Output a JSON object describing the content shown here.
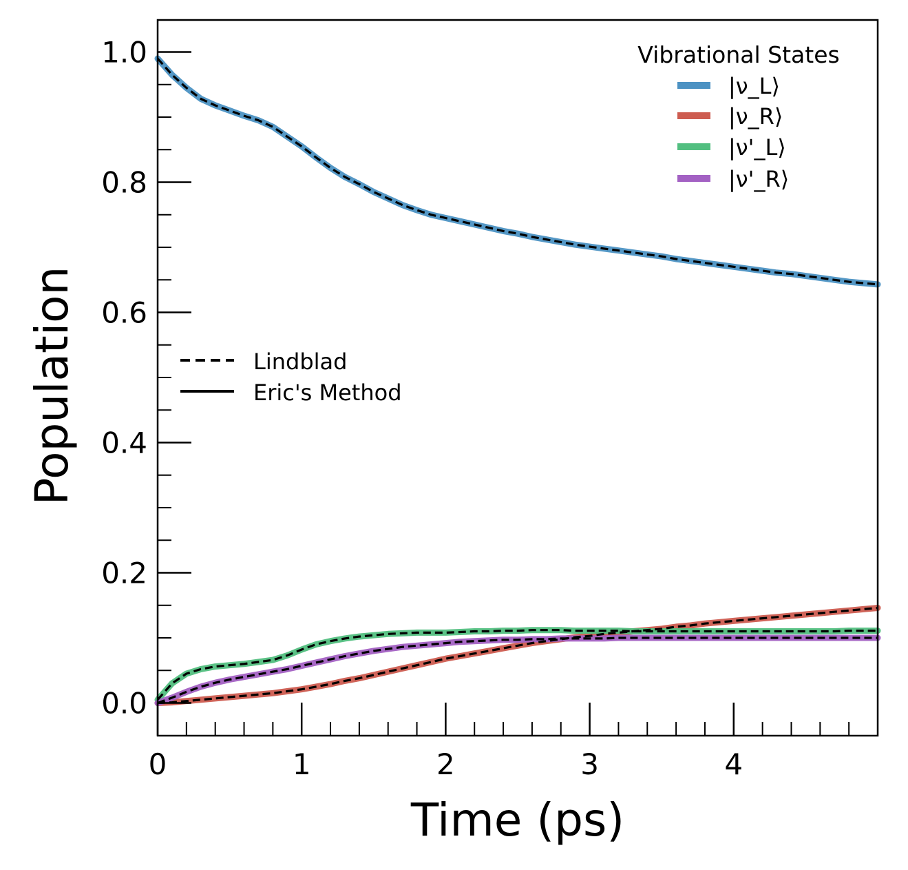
{
  "chart_data": {
    "type": "line",
    "title": "",
    "xlabel": "Time (ps)",
    "ylabel": "Population",
    "xlim": [
      0,
      5
    ],
    "ylim": [
      -0.05,
      1.05
    ],
    "x_ticks": [
      "0",
      "1",
      "2",
      "3",
      "4"
    ],
    "y_ticks": [
      "0.0",
      "0.2",
      "0.4",
      "0.6",
      "0.8",
      "1.0"
    ],
    "grid": false,
    "legend_states": {
      "title": "Vibrational States",
      "placement": "top-right",
      "entries": [
        "|ν_L⟩",
        "|ν_R⟩",
        "|ν'_L⟩",
        "|ν'_R⟩"
      ]
    },
    "legend_methods": {
      "placement": "center-left",
      "entries": [
        "Lindblad",
        "Eric's Method"
      ]
    },
    "x": [
      0,
      0.1,
      0.2,
      0.3,
      0.4,
      0.5,
      0.6,
      0.7,
      0.8,
      0.9,
      1.0,
      1.1,
      1.2,
      1.3,
      1.4,
      1.5,
      1.6,
      1.7,
      1.8,
      1.9,
      2.0,
      2.1,
      2.2,
      2.3,
      2.4,
      2.5,
      2.6,
      2.7,
      2.8,
      2.9,
      3.0,
      3.1,
      3.2,
      3.3,
      3.4,
      3.5,
      3.6,
      3.7,
      3.8,
      3.9,
      4.0,
      4.1,
      4.2,
      4.3,
      4.4,
      4.5,
      4.6,
      4.7,
      4.8,
      4.9,
      5.0
    ],
    "series": [
      {
        "name": "|ν_L⟩",
        "color": "#4c92c3",
        "values": [
          0.99,
          0.965,
          0.945,
          0.928,
          0.918,
          0.91,
          0.902,
          0.895,
          0.885,
          0.87,
          0.855,
          0.838,
          0.822,
          0.808,
          0.797,
          0.785,
          0.775,
          0.765,
          0.757,
          0.75,
          0.745,
          0.74,
          0.735,
          0.73,
          0.725,
          0.721,
          0.716,
          0.712,
          0.708,
          0.704,
          0.701,
          0.698,
          0.695,
          0.692,
          0.689,
          0.686,
          0.682,
          0.679,
          0.676,
          0.673,
          0.67,
          0.667,
          0.664,
          0.661,
          0.659,
          0.656,
          0.653,
          0.65,
          0.647,
          0.645,
          0.643
        ]
      },
      {
        "name": "|ν_R⟩",
        "color": "#cd5c50",
        "values": [
          0.0,
          0.001,
          0.003,
          0.005,
          0.007,
          0.009,
          0.011,
          0.013,
          0.015,
          0.018,
          0.021,
          0.025,
          0.029,
          0.034,
          0.038,
          0.043,
          0.048,
          0.053,
          0.058,
          0.063,
          0.068,
          0.072,
          0.076,
          0.08,
          0.084,
          0.088,
          0.092,
          0.095,
          0.098,
          0.101,
          0.103,
          0.106,
          0.108,
          0.11,
          0.112,
          0.114,
          0.117,
          0.119,
          0.122,
          0.124,
          0.126,
          0.128,
          0.13,
          0.132,
          0.134,
          0.136,
          0.138,
          0.14,
          0.142,
          0.144,
          0.146
        ]
      },
      {
        "name": "|ν'_L⟩",
        "color": "#52bf80",
        "values": [
          0.005,
          0.03,
          0.045,
          0.052,
          0.056,
          0.058,
          0.06,
          0.063,
          0.066,
          0.073,
          0.082,
          0.09,
          0.095,
          0.099,
          0.102,
          0.104,
          0.106,
          0.107,
          0.108,
          0.108,
          0.108,
          0.109,
          0.11,
          0.11,
          0.111,
          0.111,
          0.112,
          0.112,
          0.112,
          0.111,
          0.111,
          0.111,
          0.111,
          0.11,
          0.11,
          0.11,
          0.11,
          0.11,
          0.11,
          0.11,
          0.11,
          0.11,
          0.11,
          0.11,
          0.11,
          0.11,
          0.11,
          0.11,
          0.111,
          0.111,
          0.111
        ]
      },
      {
        "name": "|ν'_R⟩",
        "color": "#a361c3",
        "values": [
          0.0,
          0.008,
          0.017,
          0.025,
          0.031,
          0.036,
          0.04,
          0.044,
          0.048,
          0.052,
          0.057,
          0.062,
          0.067,
          0.072,
          0.076,
          0.08,
          0.083,
          0.086,
          0.088,
          0.09,
          0.092,
          0.094,
          0.095,
          0.096,
          0.097,
          0.097,
          0.098,
          0.098,
          0.099,
          0.099,
          0.099,
          0.099,
          0.1,
          0.1,
          0.1,
          0.1,
          0.1,
          0.1,
          0.1,
          0.1,
          0.1,
          0.1,
          0.1,
          0.1,
          0.1,
          0.1,
          0.1,
          0.1,
          0.1,
          0.1,
          0.1
        ]
      }
    ]
  }
}
